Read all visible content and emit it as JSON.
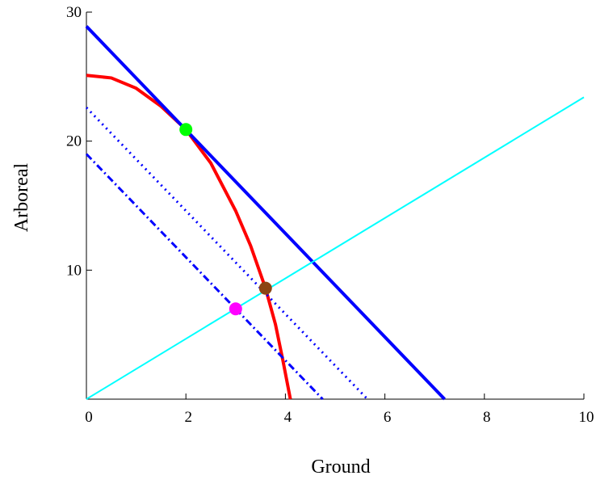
{
  "chart_data": {
    "type": "line",
    "title": "",
    "xlabel": "Ground",
    "ylabel": "Arboreal",
    "xlim": [
      0,
      10
    ],
    "ylim": [
      0,
      30
    ],
    "x_ticks": [
      0,
      2,
      4,
      6,
      8,
      10
    ],
    "y_ticks": [
      10,
      20,
      30
    ],
    "x_tick_labels": [
      "0",
      "2",
      "4",
      "6",
      "8",
      "10"
    ],
    "y_tick_labels": [
      "10",
      "20",
      "30"
    ],
    "grid": false,
    "legend": "none",
    "series": [
      {
        "kind": "curve",
        "color": "#ff0000",
        "style": "solid",
        "points": [
          [
            0,
            25.1
          ],
          [
            0.5,
            24.9
          ],
          [
            1.0,
            24.1
          ],
          [
            1.5,
            22.7
          ],
          [
            2.0,
            20.9
          ],
          [
            2.5,
            18.3
          ],
          [
            3.0,
            14.6
          ],
          [
            3.3,
            11.9
          ],
          [
            3.6,
            8.6
          ],
          [
            3.8,
            5.8
          ],
          [
            3.95,
            3.0
          ],
          [
            4.05,
            1.0
          ],
          [
            4.1,
            0
          ]
        ]
      },
      {
        "kind": "line",
        "color": "#0000ff",
        "style": "solid",
        "points": [
          [
            0,
            28.9
          ],
          [
            7.2,
            0
          ]
        ]
      },
      {
        "kind": "line",
        "color": "#0000ff",
        "style": "dotted",
        "points": [
          [
            0,
            22.6
          ],
          [
            5.65,
            0
          ]
        ]
      },
      {
        "kind": "line",
        "color": "#0000ff",
        "style": "dashdot",
        "points": [
          [
            0,
            19.0
          ],
          [
            4.75,
            0
          ]
        ]
      },
      {
        "kind": "line",
        "color": "#00ffff",
        "style": "solid",
        "points": [
          [
            0,
            0
          ],
          [
            10,
            23.4
          ]
        ]
      }
    ],
    "markers": [
      {
        "x": 2.0,
        "y": 20.9,
        "color": "#00ff00"
      },
      {
        "x": 3.6,
        "y": 8.6,
        "color": "#8b4513"
      },
      {
        "x": 3.0,
        "y": 7.0,
        "color": "#ff00ff"
      }
    ]
  }
}
